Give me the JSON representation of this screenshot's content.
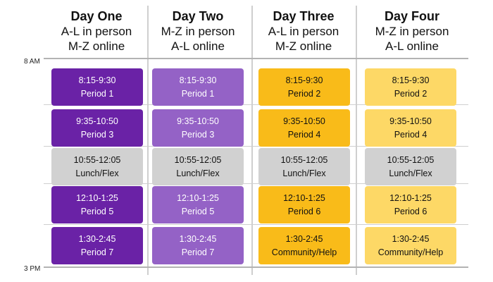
{
  "time_labels": {
    "start": "8 AM",
    "end": "3 PM"
  },
  "colors": {
    "day_one": "#6a22a6",
    "day_two": "#9462c6",
    "day_three": "#f9bb19",
    "day_four": "#fdd866",
    "lunch": "#d1d1d1"
  },
  "days": [
    {
      "title": "Day One",
      "line1": "A-L in person",
      "line2": "M-Z online",
      "blocks": [
        {
          "time": "8:15-9:30",
          "label": "Period 1"
        },
        {
          "time": "9:35-10:50",
          "label": "Period 3"
        },
        {
          "time": "10:55-12:05",
          "label": "Lunch/Flex"
        },
        {
          "time": "12:10-1:25",
          "label": "Period 5"
        },
        {
          "time": "1:30-2:45",
          "label": "Period 7"
        }
      ]
    },
    {
      "title": "Day Two",
      "line1": "M-Z in person",
      "line2": "A-L online",
      "blocks": [
        {
          "time": "8:15-9:30",
          "label": "Period 1"
        },
        {
          "time": "9:35-10:50",
          "label": "Period 3"
        },
        {
          "time": "10:55-12:05",
          "label": "Lunch/Flex"
        },
        {
          "time": "12:10-1:25",
          "label": "Period 5"
        },
        {
          "time": "1:30-2:45",
          "label": "Period 7"
        }
      ]
    },
    {
      "title": "Day Three",
      "line1": "A-L in person",
      "line2": "M-Z online",
      "blocks": [
        {
          "time": "8:15-9:30",
          "label": "Period 2"
        },
        {
          "time": "9:35-10:50",
          "label": "Period 4"
        },
        {
          "time": "10:55-12:05",
          "label": "Lunch/Flex"
        },
        {
          "time": "12:10-1:25",
          "label": "Period 6"
        },
        {
          "time": "1:30-2:45",
          "label": "Community/Help"
        }
      ]
    },
    {
      "title": "Day Four",
      "line1": "M-Z in person",
      "line2": "A-L online",
      "blocks": [
        {
          "time": "8:15-9:30",
          "label": "Period 2"
        },
        {
          "time": "9:35-10:50",
          "label": "Period 4"
        },
        {
          "time": "10:55-12:05",
          "label": "Lunch/Flex"
        },
        {
          "time": "12:10-1:25",
          "label": "Period 6"
        },
        {
          "time": "1:30-2:45",
          "label": "Community/Help"
        }
      ]
    }
  ]
}
